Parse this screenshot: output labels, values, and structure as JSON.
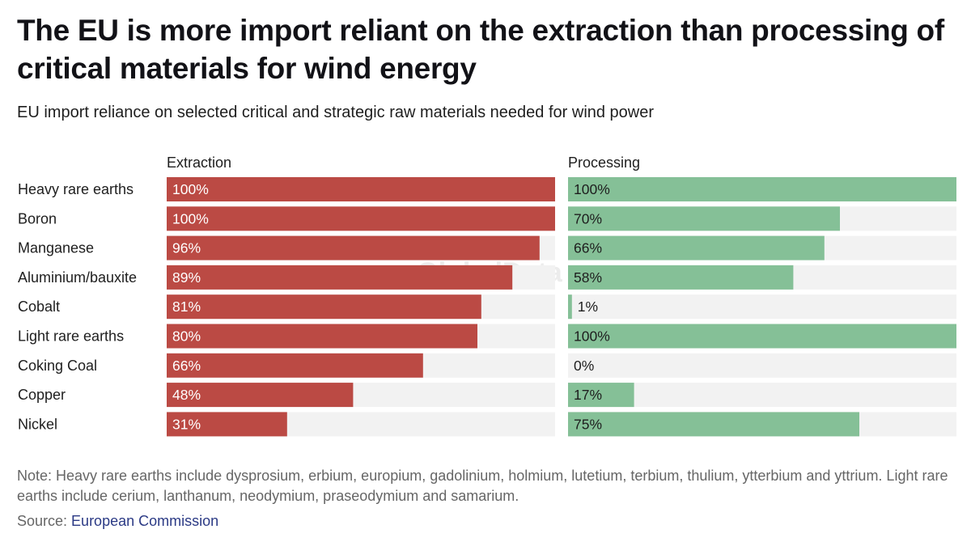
{
  "title": "The EU is more import reliant on the extraction than processing of critical materials for wind energy",
  "subtitle": "EU import reliance on selected critical and strategic raw materials needed for wind power",
  "chart_data": {
    "type": "bar",
    "orientation": "horizontal",
    "categories": [
      "Heavy rare earths",
      "Boron",
      "Manganese",
      "Aluminium/bauxite",
      "Cobalt",
      "Light rare earths",
      "Coking Coal",
      "Copper",
      "Nickel"
    ],
    "series": [
      {
        "name": "Extraction",
        "values": [
          100,
          100,
          96,
          89,
          81,
          80,
          66,
          48,
          31
        ],
        "labels": [
          "100%",
          "100%",
          "96%",
          "89%",
          "81%",
          "80%",
          "66%",
          "48%",
          "31%"
        ],
        "color": "#bb4a44"
      },
      {
        "name": "Processing",
        "values": [
          100,
          70,
          66,
          58,
          1,
          100,
          0,
          17,
          75
        ],
        "labels": [
          "100%",
          "70%",
          "66%",
          "58%",
          "1%",
          "100%",
          "0%",
          "17%",
          "75%"
        ],
        "color": "#85c097"
      }
    ],
    "xlim": [
      0,
      100
    ],
    "unit": "%",
    "track_color": "#f2f2f2"
  },
  "note": "Note: Heavy rare earths include dysprosium, erbium, europium, gadolinium, holmium, lutetium, terbium, thulium, ytterbium and yttrium. Light rare earths include cerium, lanthanum, neodymium, praseodymium and samarium.",
  "source": {
    "label": "Source: ",
    "link_text": "European Commission"
  },
  "watermark": "GlobalData"
}
